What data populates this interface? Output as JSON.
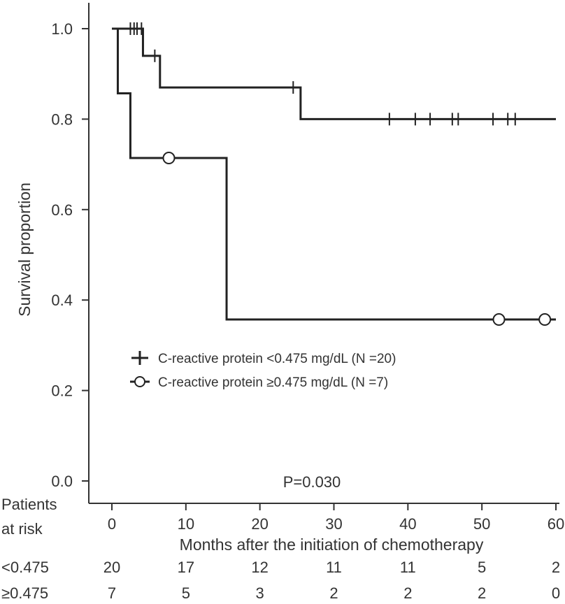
{
  "chart_data": {
    "type": "line",
    "title": "",
    "xlabel": "Months after the initiation of chemotherapy",
    "ylabel": "Survival proportion",
    "xlim": [
      0,
      60
    ],
    "ylim": [
      0,
      1.0
    ],
    "x_ticks": [
      "0",
      "10",
      "20",
      "30",
      "40",
      "50",
      "60"
    ],
    "y_ticks": [
      "0.0",
      "0.2",
      "0.4",
      "0.6",
      "0.8",
      "1.0"
    ],
    "grid": false,
    "legend_position": "lower-left",
    "annotation": "P=0.030",
    "series": [
      {
        "name": "C-reactive protein <0.475 mg/dL (N =20)",
        "marker": "plus",
        "color": "#222222",
        "steps": [
          [
            0,
            1.0
          ],
          [
            4.2,
            0.94
          ],
          [
            6.5,
            0.87
          ],
          [
            25.5,
            0.8
          ],
          [
            60,
            0.8
          ]
        ],
        "censored": [
          [
            2.5,
            1.0
          ],
          [
            3.0,
            1.0
          ],
          [
            3.4,
            1.0
          ],
          [
            4.0,
            1.0
          ],
          [
            5.8,
            0.94
          ],
          [
            24.5,
            0.87
          ],
          [
            37.5,
            0.8
          ],
          [
            41.0,
            0.8
          ],
          [
            43.0,
            0.8
          ],
          [
            46.0,
            0.8
          ],
          [
            46.8,
            0.8
          ],
          [
            51.5,
            0.8
          ],
          [
            53.5,
            0.8
          ],
          [
            54.5,
            0.8
          ]
        ]
      },
      {
        "name": "C-reactive protein ≥0.475 mg/dL (N =7)",
        "marker": "circle",
        "color": "#222222",
        "steps": [
          [
            0,
            1.0
          ],
          [
            0.8,
            0.857
          ],
          [
            2.5,
            0.714
          ],
          [
            15.5,
            0.357
          ],
          [
            60,
            0.357
          ]
        ],
        "censored": [
          [
            7.7,
            0.714
          ],
          [
            52.3,
            0.357
          ],
          [
            58.5,
            0.357
          ]
        ]
      }
    ]
  },
  "risk_table": {
    "header_line1": "Patients",
    "header_line2": "at risk",
    "rows": [
      {
        "label": "<0.475",
        "counts": [
          "20",
          "17",
          "12",
          "11",
          "11",
          "5",
          "2"
        ]
      },
      {
        "label": "≥0.475",
        "counts": [
          "7",
          "5",
          "3",
          "2",
          "2",
          "2",
          "0"
        ]
      }
    ]
  }
}
